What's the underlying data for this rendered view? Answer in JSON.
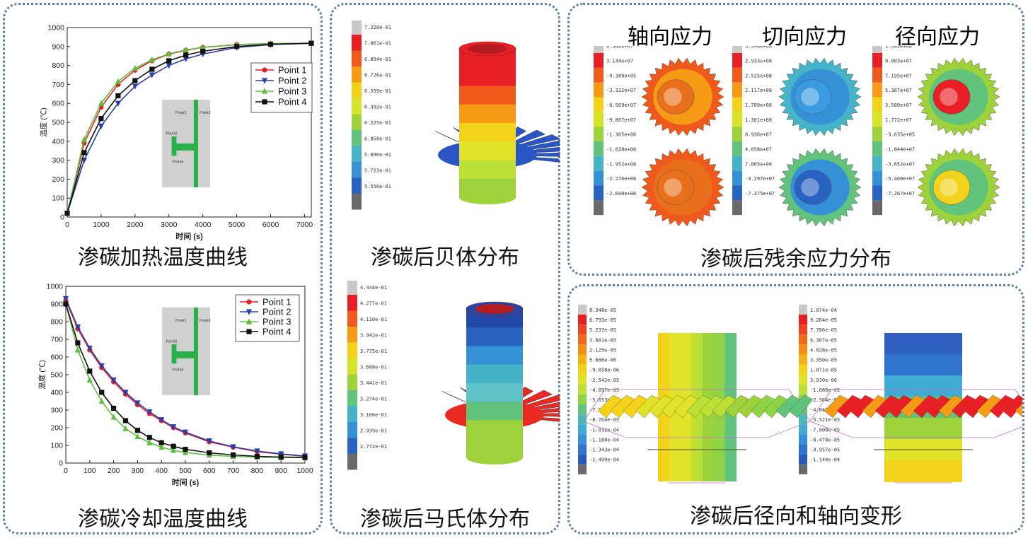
{
  "captions": {
    "heating": "渗碳加热温度曲线",
    "cooling": "渗碳冷却温度曲线",
    "bainite": "渗碳后贝体分布",
    "martensite": "渗碳后马氏体分布",
    "stress": "渗碳后残余应力分布",
    "deformation": "渗碳后径向和轴向变形"
  },
  "stress_titles": [
    "轴向应力",
    "切向应力",
    "径向应力"
  ],
  "inset_labels": {
    "heat": [
      "Point1",
      "Point2",
      "Point3",
      "Point4"
    ],
    "cool": [
      "Point1",
      "Point2",
      "Point3",
      "Point4"
    ]
  },
  "colors": {
    "point1": "#e8202a",
    "point2": "#2a3ea8",
    "point3": "#5cbf3e",
    "point4": "#111111",
    "panel_border": "#5b7fa6"
  },
  "colorbars": {
    "bainite": [
      "7.228e-01",
      "7.061e-01",
      "6.894e-01",
      "6.726e-01",
      "6.559e-01",
      "6.392e-01",
      "6.225e-01",
      "6.058e-01",
      "5.890e-01",
      "5.723e-01",
      "5.556e-01"
    ],
    "martensite": [
      "4.444e-01",
      "4.277e-01",
      "4.110e-01",
      "3.942e-01",
      "3.775e-01",
      "3.608e-01",
      "3.441e-01",
      "3.274e-01",
      "3.106e-01",
      "2.939e-01",
      "2.772e-01"
    ],
    "axial": [
      "6.382e+07",
      "3.144e+07",
      "-9.389e+05",
      "-3.332e+07",
      "-6.569e+07",
      "-9.807e+07",
      "-1.305e+08",
      "-1.628e+08",
      "-1.952e+08",
      "-2.276e+08",
      "-2.600e+08"
    ],
    "tangential": [
      "3.340e+08",
      "2.933e+08",
      "2.525e+08",
      "2.117e+08",
      "1.709e+08",
      "1.301e+08",
      "8.936e+07",
      "4.858e+07",
      "7.805e+06",
      "-3.297e+07",
      "-7.375e+07"
    ],
    "radial": [
      "1.082e+08",
      "9.003e+07",
      "7.195e+07",
      "5.387e+07",
      "3.580e+07",
      "1.772e+07",
      "-3.635e+05",
      "-1.844e+07",
      "-3.652e+07",
      "-5.460e+07",
      "-7.267e+07"
    ],
    "radial_def": [
      "8.348e-05",
      "6.793e-05",
      "5.237e-05",
      "3.681e-05",
      "2.125e-05",
      "5.686e-06",
      "-9.858e-06",
      "-2.542e-05",
      "-4.097e-05",
      "-5.653e-05",
      "-7.209e-05",
      "-8.764e-05",
      "-1.032e-04",
      "-1.188e-04",
      "-1.343e-04",
      "-1.499e-04"
    ],
    "axial_def": [
      "1.074e-04",
      "9.264e-05",
      "7.786e-05",
      "6.307e-05",
      "4.828e-05",
      "3.350e-05",
      "1.871e-05",
      "3.930e-06",
      "-1.086e-05",
      "-2.564e-05",
      "-4.043e-05",
      "-5.521e-05",
      "-7.000e-05",
      "-8.478e-05",
      "-9.957e-05",
      "-1.144e-04"
    ]
  },
  "chart_data": [
    {
      "type": "line",
      "xlabel": "时间 (s)",
      "ylabel": "温度 (℃)",
      "xlim": [
        0,
        7200
      ],
      "ylim": [
        0,
        1000
      ],
      "xticks": [
        "0",
        "1000",
        "2000",
        "3000",
        "4000",
        "5000",
        "6000",
        "7000"
      ],
      "yticks": [
        "0",
        "100",
        "200",
        "300",
        "400",
        "500",
        "600",
        "700",
        "800",
        "900",
        "1000"
      ],
      "legend_position": "top-right",
      "series": [
        {
          "name": "Point 1",
          "color": "#e8202a",
          "marker": "circle",
          "x": [
            0,
            500,
            1000,
            1500,
            2000,
            2500,
            3000,
            3500,
            4000,
            5000,
            6000,
            7200
          ],
          "y": [
            20,
            390,
            580,
            700,
            775,
            825,
            860,
            880,
            895,
            910,
            915,
            918
          ]
        },
        {
          "name": "Point 2",
          "color": "#2a3ea8",
          "marker": "triangle-down",
          "x": [
            0,
            500,
            1000,
            1500,
            2000,
            2500,
            3000,
            3500,
            4000,
            5000,
            6000,
            7200
          ],
          "y": [
            20,
            300,
            480,
            600,
            690,
            750,
            800,
            835,
            860,
            895,
            910,
            917
          ]
        },
        {
          "name": "Point 3",
          "color": "#5cbf3e",
          "marker": "triangle-up",
          "x": [
            0,
            500,
            1000,
            1500,
            2000,
            2500,
            3000,
            3500,
            4000,
            5000,
            6000,
            7200
          ],
          "y": [
            20,
            410,
            600,
            715,
            785,
            830,
            862,
            882,
            896,
            910,
            915,
            918
          ]
        },
        {
          "name": "Point 4",
          "color": "#111111",
          "marker": "square",
          "x": [
            0,
            500,
            1000,
            1500,
            2000,
            2500,
            3000,
            3500,
            4000,
            5000,
            6000,
            7200
          ],
          "y": [
            20,
            340,
            520,
            640,
            720,
            780,
            825,
            855,
            875,
            900,
            912,
            917
          ]
        }
      ]
    },
    {
      "type": "line",
      "xlabel": "时间 (s)",
      "ylabel": "温度 (℃)",
      "xlim": [
        0,
        1000
      ],
      "ylim": [
        0,
        1000
      ],
      "xticks": [
        "0",
        "100",
        "200",
        "300",
        "400",
        "500",
        "600",
        "700",
        "800",
        "900",
        "1000"
      ],
      "yticks": [
        "0",
        "100",
        "200",
        "300",
        "400",
        "500",
        "600",
        "700",
        "800",
        "900",
        "1000"
      ],
      "legend_position": "top-right",
      "series": [
        {
          "name": "Point 1",
          "color": "#e8202a",
          "marker": "circle",
          "x": [
            0,
            50,
            100,
            150,
            200,
            250,
            300,
            350,
            400,
            450,
            500,
            600,
            700,
            800,
            900,
            1000
          ],
          "y": [
            920,
            760,
            640,
            540,
            460,
            390,
            330,
            280,
            240,
            200,
            170,
            120,
            90,
            65,
            50,
            38
          ]
        },
        {
          "name": "Point 2",
          "color": "#2a3ea8",
          "marker": "triangle-down",
          "x": [
            0,
            50,
            100,
            150,
            200,
            250,
            300,
            350,
            400,
            450,
            500,
            600,
            700,
            800,
            900,
            1000
          ],
          "y": [
            930,
            770,
            650,
            550,
            470,
            400,
            340,
            290,
            245,
            205,
            175,
            125,
            92,
            68,
            52,
            40
          ]
        },
        {
          "name": "Point 3",
          "color": "#5cbf3e",
          "marker": "triangle-up",
          "x": [
            0,
            50,
            100,
            150,
            200,
            250,
            300,
            350,
            400,
            450,
            500,
            600,
            700,
            800,
            900,
            1000
          ],
          "y": [
            900,
            640,
            470,
            350,
            260,
            195,
            150,
            115,
            90,
            72,
            60,
            45,
            38,
            34,
            32,
            30
          ]
        },
        {
          "name": "Point 4",
          "color": "#111111",
          "marker": "square",
          "x": [
            0,
            50,
            100,
            150,
            200,
            250,
            300,
            350,
            400,
            450,
            500,
            600,
            700,
            800,
            900,
            1000
          ],
          "y": [
            900,
            680,
            520,
            400,
            310,
            240,
            185,
            145,
            115,
            95,
            78,
            58,
            46,
            38,
            34,
            32
          ]
        }
      ]
    }
  ]
}
